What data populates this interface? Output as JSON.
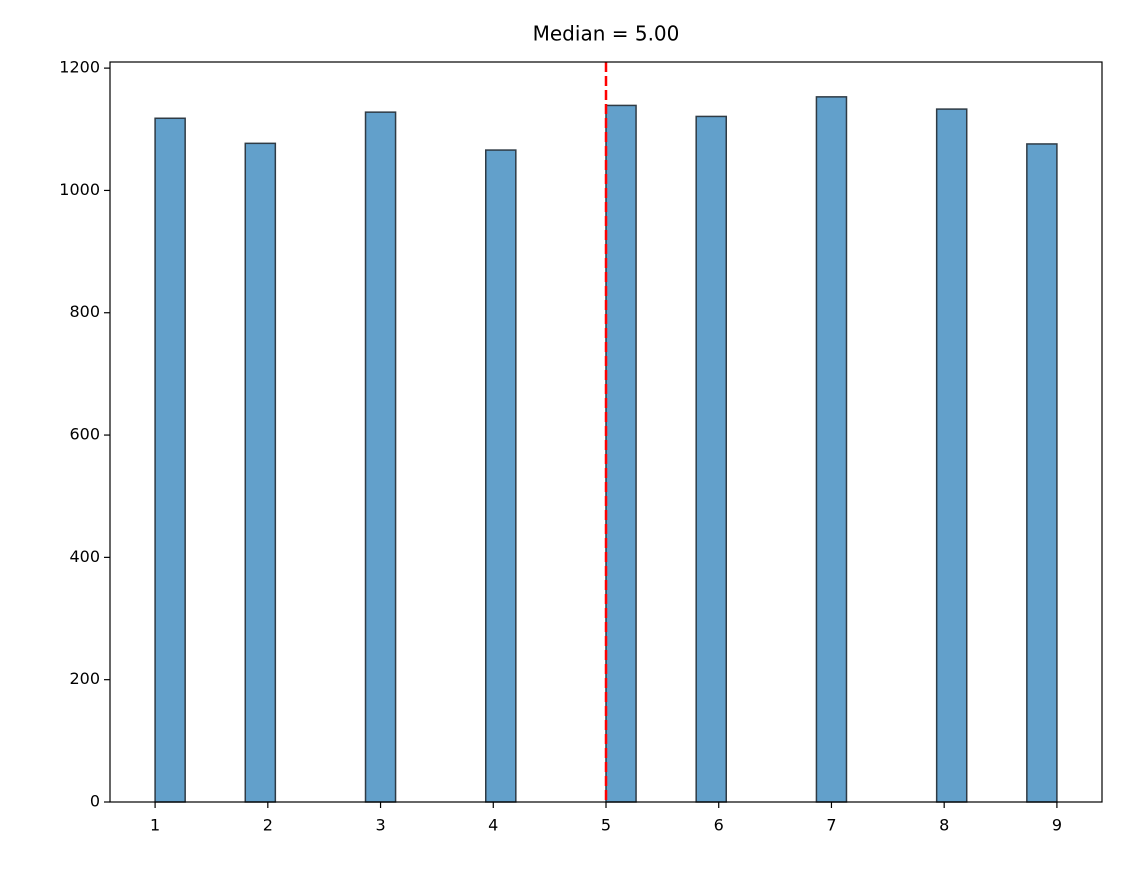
{
  "chart_data": {
    "type": "histogram",
    "title": "Median = 5.00",
    "bins": [
      1,
      1.2667,
      1.5333,
      1.8,
      2.0667,
      2.3333,
      2.6,
      2.8667,
      3.1333,
      3.4,
      3.6667,
      3.9333,
      4.2,
      4.4667,
      4.7333,
      5,
      5.2667,
      5.5333,
      5.8,
      6.0667,
      6.3333,
      6.6,
      6.8667,
      7.1333,
      7.4,
      7.6667,
      7.9333,
      8.2,
      8.4667,
      8.7333,
      9
    ],
    "values": [
      1118,
      0,
      0,
      1077,
      0,
      0,
      0,
      1128,
      0,
      0,
      0,
      1066,
      0,
      0,
      0,
      1139,
      0,
      0,
      1121,
      0,
      0,
      0,
      1153,
      0,
      0,
      0,
      1133,
      0,
      0,
      1076
    ],
    "color": "#62a0cb",
    "edgecolor": "#2f3b45",
    "median_line": {
      "value": 5,
      "color": "#ff0000",
      "style": "dashed"
    },
    "xlim": [
      0.6,
      9.4
    ],
    "xticks": [
      1,
      2,
      3,
      4,
      5,
      6,
      7,
      8,
      9
    ],
    "ylim": [
      0,
      1210
    ],
    "yticks": [
      0,
      200,
      400,
      600,
      800,
      1000,
      1200
    ]
  }
}
